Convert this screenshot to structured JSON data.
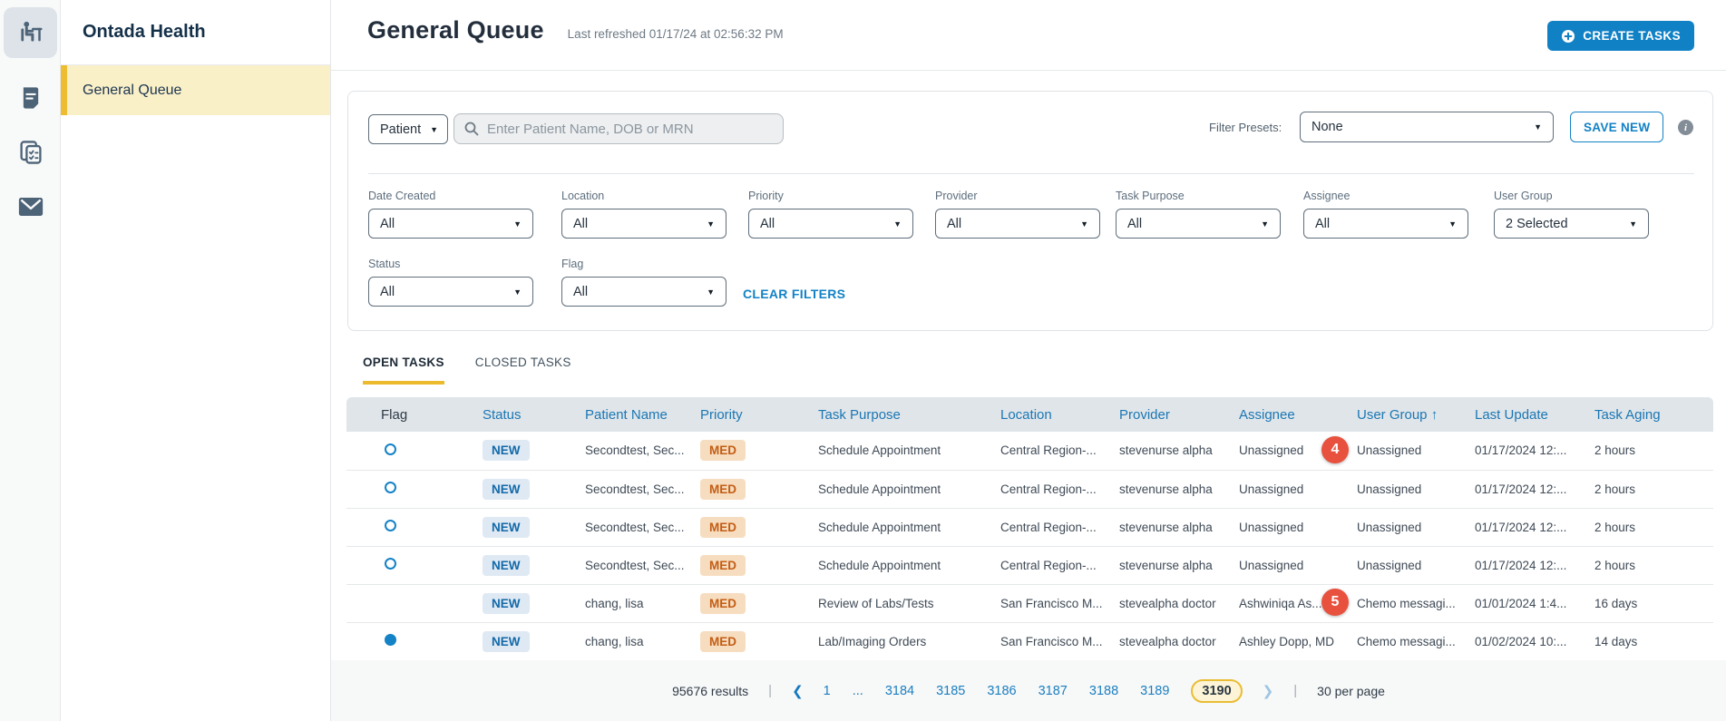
{
  "rail": {
    "icons": [
      {
        "name": "patient-chair-icon",
        "active": true
      },
      {
        "name": "document-icon",
        "active": false
      },
      {
        "name": "task-cards-icon",
        "active": false
      },
      {
        "name": "mail-icon",
        "active": false
      }
    ]
  },
  "sidebar": {
    "brand": "Ontada Health",
    "items": [
      {
        "label": "General Queue",
        "active": true
      }
    ]
  },
  "header": {
    "title": "General Queue",
    "last_refreshed": "Last refreshed 01/17/24 at 02:56:32 PM",
    "create_tasks": "CREATE TASKS"
  },
  "filters": {
    "search_type": "Patient",
    "search_placeholder": "Enter Patient Name, DOB or MRN",
    "presets_label": "Filter Presets:",
    "presets_value": "None",
    "save_new": "SAVE NEW",
    "clear_filters": "CLEAR FILTERS",
    "row1": [
      {
        "label": "Date Created",
        "value": "All"
      },
      {
        "label": "Location",
        "value": "All"
      },
      {
        "label": "Priority",
        "value": "All"
      },
      {
        "label": "Provider",
        "value": "All"
      },
      {
        "label": "Task Purpose",
        "value": "All"
      },
      {
        "label": "Assignee",
        "value": "All"
      },
      {
        "label": "User Group",
        "value": "2 Selected"
      }
    ],
    "row2": [
      {
        "label": "Status",
        "value": "All"
      },
      {
        "label": "Flag",
        "value": "All"
      }
    ]
  },
  "tabs": [
    {
      "label": "OPEN TASKS",
      "active": true
    },
    {
      "label": "CLOSED TASKS",
      "active": false
    }
  ],
  "table": {
    "columns": [
      "Flag",
      "Status",
      "Patient Name",
      "Priority",
      "Task Purpose",
      "Location",
      "Provider",
      "Assignee",
      "User Group",
      "Last Update",
      "Task Aging"
    ],
    "sorted_column": "User Group",
    "sort_direction": "asc",
    "rows": [
      {
        "flag": "outline",
        "status": "NEW",
        "patient_name": "Secondtest, Sec...",
        "priority": "MED",
        "task_purpose": "Schedule Appointment",
        "location": "Central Region-...",
        "provider": "stevenurse alpha",
        "assignee": "Unassigned",
        "user_group": "Unassigned",
        "last_update": "01/17/2024 12:...",
        "task_aging": "2 hours"
      },
      {
        "flag": "outline",
        "status": "NEW",
        "patient_name": "Secondtest, Sec...",
        "priority": "MED",
        "task_purpose": "Schedule Appointment",
        "location": "Central Region-...",
        "provider": "stevenurse alpha",
        "assignee": "Unassigned",
        "user_group": "Unassigned",
        "last_update": "01/17/2024 12:...",
        "task_aging": "2 hours"
      },
      {
        "flag": "outline",
        "status": "NEW",
        "patient_name": "Secondtest, Sec...",
        "priority": "MED",
        "task_purpose": "Schedule Appointment",
        "location": "Central Region-...",
        "provider": "stevenurse alpha",
        "assignee": "Unassigned",
        "user_group": "Unassigned",
        "last_update": "01/17/2024 12:...",
        "task_aging": "2 hours"
      },
      {
        "flag": "outline",
        "status": "NEW",
        "patient_name": "Secondtest, Sec...",
        "priority": "MED",
        "task_purpose": "Schedule Appointment",
        "location": "Central Region-...",
        "provider": "stevenurse alpha",
        "assignee": "Unassigned",
        "user_group": "Unassigned",
        "last_update": "01/17/2024 12:...",
        "task_aging": "2 hours"
      },
      {
        "flag": "none",
        "status": "NEW",
        "patient_name": "chang, lisa",
        "priority": "MED",
        "task_purpose": "Review of Labs/Tests",
        "location": "San Francisco M...",
        "provider": "stevealpha doctor",
        "assignee": "Ashwiniqa As...",
        "user_group": "Chemo messagi...",
        "last_update": "01/01/2024 1:4...",
        "task_aging": "16 days"
      },
      {
        "flag": "filled",
        "status": "NEW",
        "patient_name": "chang, lisa",
        "priority": "MED",
        "task_purpose": "Lab/Imaging Orders",
        "location": "San Francisco M...",
        "provider": "stevealpha doctor",
        "assignee": "Ashley Dopp, MD",
        "user_group": "Chemo messagi...",
        "last_update": "01/02/2024 10:...",
        "task_aging": "14 days"
      }
    ]
  },
  "pagination": {
    "results": "95676 results",
    "pages": [
      "1",
      "...",
      "3184",
      "3185",
      "3186",
      "3187",
      "3188",
      "3189",
      "3190"
    ],
    "current": "3190",
    "per_page": "30 per page"
  },
  "annotations": {
    "markers": [
      {
        "label": "4"
      },
      {
        "label": "5"
      }
    ]
  },
  "colors": {
    "accent_blue": "#1181c6",
    "brand_yellow": "#ecba2d",
    "marker_red": "#e8513e",
    "new_badge_bg": "#dfe9f4",
    "new_badge_text": "#1369a8",
    "med_badge_bg": "#f7ddc0",
    "med_badge_text": "#c35d14",
    "header_row_bg": "#e0e5e9"
  }
}
